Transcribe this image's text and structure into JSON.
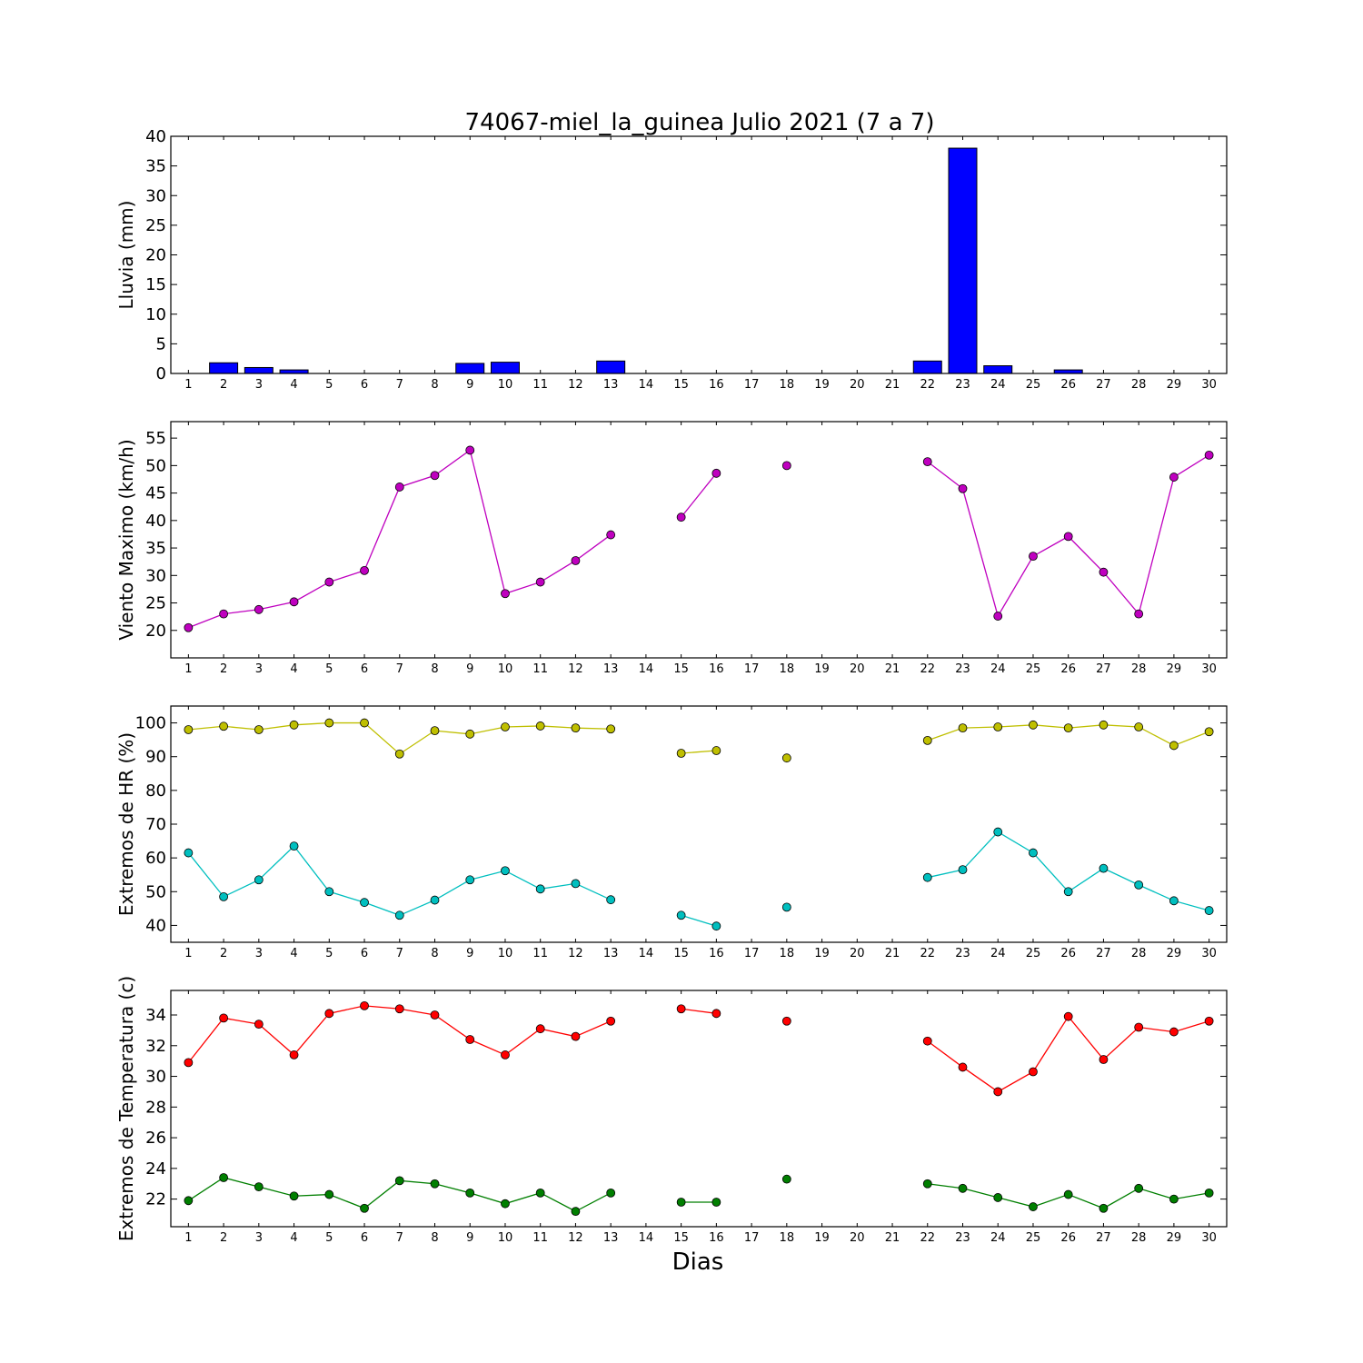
{
  "figure": {
    "title": "74067-miel_la_guinea Julio 2021  (7 a 7)",
    "xlabel": "Dias"
  },
  "chart_data": [
    {
      "type": "bar",
      "ylabel": "Lluvia (mm)",
      "ylim": [
        0,
        40
      ],
      "yticks": [
        0,
        5,
        10,
        15,
        20,
        25,
        30,
        35,
        40
      ],
      "categories": [
        1,
        2,
        3,
        4,
        5,
        6,
        7,
        8,
        9,
        10,
        11,
        12,
        13,
        14,
        15,
        16,
        17,
        18,
        19,
        20,
        21,
        22,
        23,
        24,
        25,
        26,
        27,
        28,
        29,
        30
      ],
      "series": [
        {
          "color": "#0000ff",
          "values": [
            0,
            1.8,
            1.0,
            0.6,
            0,
            0,
            0,
            0,
            1.7,
            1.9,
            0,
            0,
            2.1,
            0,
            0,
            0,
            0,
            0,
            0,
            0,
            0,
            2.1,
            38.0,
            1.3,
            0,
            0.6,
            0,
            0,
            0,
            0
          ]
        }
      ]
    },
    {
      "type": "line",
      "ylabel": "Viento Maximo (km/h)",
      "ylim": [
        15,
        58
      ],
      "yticks": [
        20,
        25,
        30,
        35,
        40,
        45,
        50,
        55
      ],
      "categories": [
        1,
        2,
        3,
        4,
        5,
        6,
        7,
        8,
        9,
        10,
        11,
        12,
        13,
        14,
        15,
        16,
        17,
        18,
        19,
        20,
        21,
        22,
        23,
        24,
        25,
        26,
        27,
        28,
        29,
        30
      ],
      "series": [
        {
          "color": "#bf00bf",
          "values": [
            20.5,
            23.0,
            23.8,
            25.2,
            28.8,
            30.9,
            46.1,
            48.2,
            52.8,
            26.7,
            28.8,
            32.7,
            37.4,
            null,
            40.6,
            48.6,
            null,
            50.0,
            null,
            null,
            null,
            50.7,
            45.8,
            22.6,
            33.5,
            37.1,
            30.6,
            23.0,
            47.9,
            51.9
          ]
        }
      ]
    },
    {
      "type": "line",
      "ylabel": "Extremos de HR (%)",
      "ylim": [
        35,
        105
      ],
      "yticks": [
        40,
        50,
        60,
        70,
        80,
        90,
        100
      ],
      "categories": [
        1,
        2,
        3,
        4,
        5,
        6,
        7,
        8,
        9,
        10,
        11,
        12,
        13,
        14,
        15,
        16,
        17,
        18,
        19,
        20,
        21,
        22,
        23,
        24,
        25,
        26,
        27,
        28,
        29,
        30
      ],
      "series": [
        {
          "color": "#bfbf00",
          "values": [
            98.0,
            99.0,
            98.0,
            99.4,
            100.0,
            100.0,
            90.8,
            97.7,
            96.7,
            98.8,
            99.1,
            98.5,
            98.2,
            null,
            91.0,
            91.8,
            null,
            89.6,
            null,
            null,
            null,
            94.8,
            98.5,
            98.8,
            99.4,
            98.5,
            99.4,
            98.8,
            93.3,
            97.4
          ]
        },
        {
          "color": "#00bfbf",
          "values": [
            61.5,
            48.5,
            53.5,
            63.5,
            50.0,
            46.8,
            43.0,
            47.5,
            53.5,
            56.2,
            50.8,
            52.4,
            47.6,
            null,
            43.0,
            39.8,
            null,
            45.4,
            null,
            null,
            null,
            54.2,
            56.5,
            67.7,
            61.5,
            50.0,
            56.9,
            52.0,
            47.3,
            44.4
          ]
        }
      ]
    },
    {
      "type": "line",
      "ylabel": "Extremos de Temperatura (c)",
      "ylim": [
        20.2,
        35.6
      ],
      "yticks": [
        22,
        24,
        26,
        28,
        30,
        32,
        34
      ],
      "categories": [
        1,
        2,
        3,
        4,
        5,
        6,
        7,
        8,
        9,
        10,
        11,
        12,
        13,
        14,
        15,
        16,
        17,
        18,
        19,
        20,
        21,
        22,
        23,
        24,
        25,
        26,
        27,
        28,
        29,
        30
      ],
      "series": [
        {
          "color": "#ff0000",
          "values": [
            30.9,
            33.8,
            33.4,
            31.4,
            34.1,
            34.6,
            34.4,
            34.0,
            32.4,
            31.4,
            33.1,
            32.6,
            33.6,
            null,
            34.4,
            34.1,
            null,
            33.6,
            null,
            null,
            null,
            32.3,
            30.6,
            29.0,
            30.3,
            33.9,
            31.1,
            33.2,
            32.9,
            33.6
          ]
        },
        {
          "color": "#007f00",
          "values": [
            21.9,
            23.4,
            22.8,
            22.2,
            22.3,
            21.4,
            23.2,
            23.0,
            22.4,
            21.7,
            22.4,
            21.2,
            22.4,
            null,
            21.8,
            21.8,
            null,
            23.3,
            null,
            null,
            null,
            23.0,
            22.7,
            22.1,
            21.5,
            22.3,
            21.4,
            22.7,
            22.0,
            22.4
          ]
        }
      ]
    }
  ]
}
